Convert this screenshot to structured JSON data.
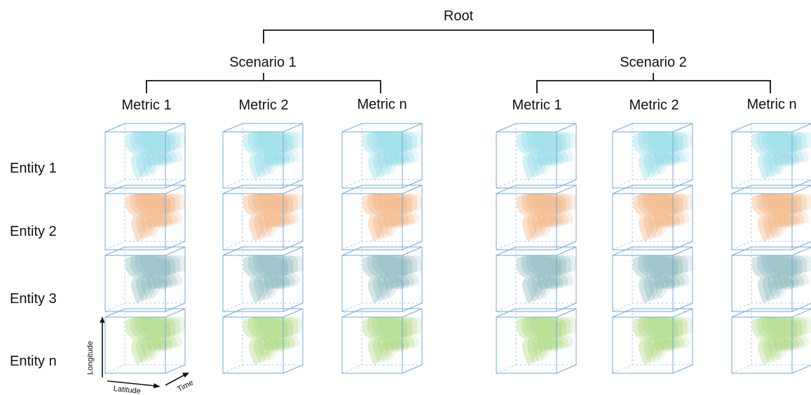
{
  "root": {
    "label": "Root"
  },
  "scenarios": [
    {
      "label": "Scenario 1",
      "metrics": [
        "Metric 1",
        "Metric 2",
        "Metric n"
      ]
    },
    {
      "label": "Scenario 2",
      "metrics": [
        "Metric 1",
        "Metric 2",
        "Metric n"
      ]
    }
  ],
  "entities": [
    "Entity 1",
    "Entity 2",
    "Entity 3",
    "Entity n"
  ],
  "axes": {
    "longitude": "Longitude",
    "latitude": "Latitude",
    "time": "Time"
  },
  "entity_palettes": [
    {
      "land": "#17b4c8",
      "deep": "#0c5aa6",
      "light": "#7fd6e3",
      "ghost": "#cdeff4"
    },
    {
      "land": "#d46a0f",
      "deep": "#c8191e",
      "light": "#f0a66a",
      "ghost": "#f7d9c2"
    },
    {
      "land": "#2f7f86",
      "deep": "#1f3f7a",
      "light": "#78aeb3",
      "ghost": "#cfe1e3"
    },
    {
      "land": "#2e9e6e",
      "deep": "#1c6f87",
      "light": "#9ed36a",
      "ghost": "#cfeadd"
    }
  ],
  "colors": {
    "tree_line": "#111111",
    "cube_edge": "#6fa8dc"
  }
}
